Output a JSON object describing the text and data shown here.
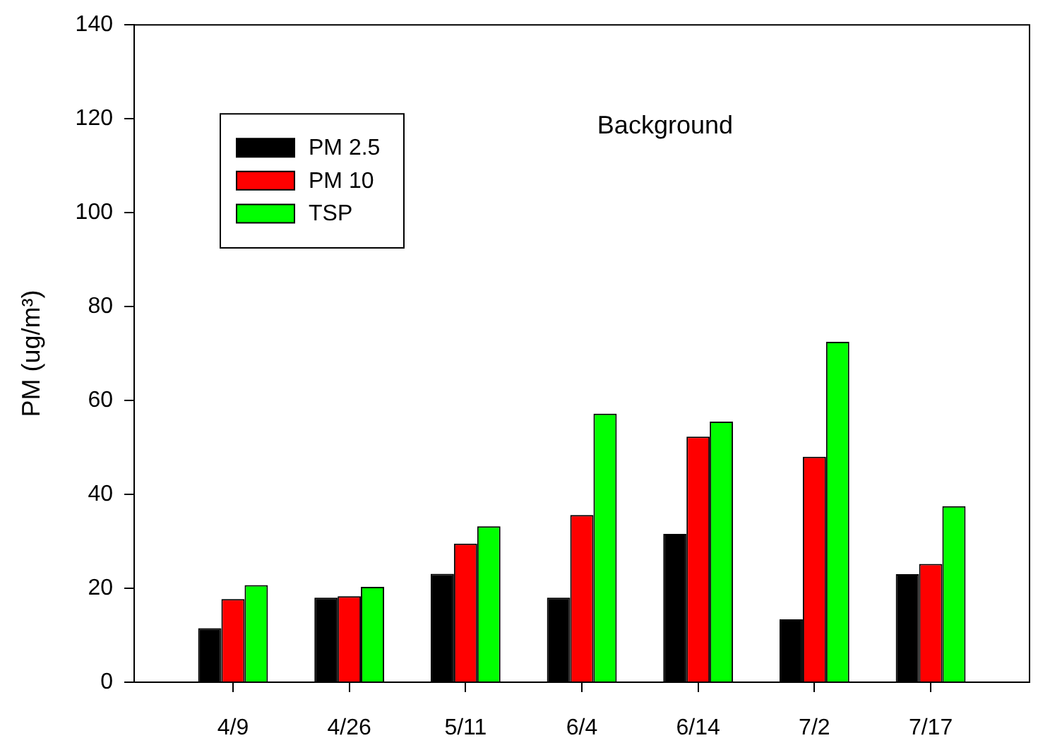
{
  "chart_data": {
    "type": "bar",
    "title": "Background",
    "ylabel": "PM (ug/m³)",
    "categories": [
      "4/9",
      "4/26",
      "5/11",
      "6/4",
      "6/14",
      "7/2",
      "7/17"
    ],
    "series": [
      {
        "name": "PM 2.5",
        "color": "#000000",
        "values": [
          11.5,
          18.0,
          23.1,
          18.0,
          31.6,
          13.4,
          23.0
        ]
      },
      {
        "name": "PM 10",
        "color": "#ff0000",
        "values": [
          17.7,
          18.3,
          29.5,
          35.6,
          52.3,
          48.0,
          25.2
        ]
      },
      {
        "name": "TSP",
        "color": "#00ff00",
        "values": [
          20.7,
          20.3,
          33.2,
          57.2,
          55.5,
          72.5,
          37.5
        ]
      }
    ],
    "ylim": [
      0,
      140
    ],
    "yticks": [
      0,
      20,
      40,
      60,
      80,
      100,
      120,
      140
    ],
    "grid": false,
    "legend": "top left"
  }
}
